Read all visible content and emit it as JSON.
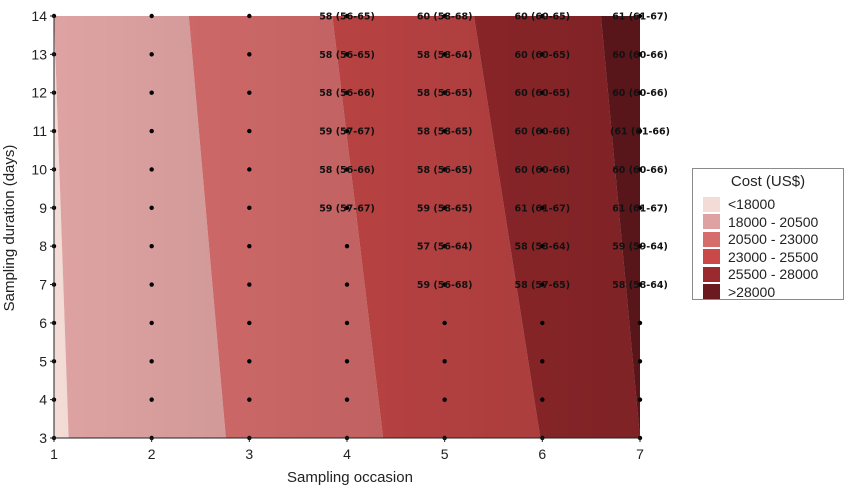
{
  "chart_data": {
    "type": "heatmap",
    "xlabel": "Sampling occasion",
    "ylabel": "Sampling duration (days)",
    "x_ticks": [
      1,
      2,
      3,
      4,
      5,
      6,
      7
    ],
    "y_ticks": [
      3,
      4,
      5,
      6,
      7,
      8,
      9,
      10,
      11,
      12,
      13,
      14
    ],
    "xlim": [
      1,
      7
    ],
    "ylim": [
      3,
      14
    ],
    "grid_points": "all integer (occasion, duration) combinations",
    "legend": {
      "title": "Cost (US$)",
      "placement": "right",
      "entries": [
        {
          "label": "<18000",
          "color": "#f2dcd5"
        },
        {
          "label": "18000 - 20500",
          "color": "#dea2a2"
        },
        {
          "label": "20500 - 23000",
          "color": "#d66c6c"
        },
        {
          "label": "23000 - 25500",
          "color": "#c94848"
        },
        {
          "label": "25500 - 28000",
          "color": "#9b2a2e"
        },
        {
          "label": ">28000",
          "color": "#6b1a1f"
        }
      ]
    },
    "cost_band_boundaries": [
      {
        "band": "<18000 | 18000 - 20500",
        "bottom_x": 1.15,
        "top_x": 1.0
      },
      {
        "band": "18000 - 20500 | 20500 - 23000",
        "bottom_x": 2.76,
        "top_x": 2.38
      },
      {
        "band": "20500 - 23000 | 23000 - 25500",
        "bottom_x": 4.37,
        "top_x": 3.85
      },
      {
        "band": "23000 - 25500 | 25500 - 28000",
        "bottom_x": 5.98,
        "top_x": 5.3
      },
      {
        "band": "25500 - 28000 | >28000",
        "bottom_x": 7.0,
        "top_x": 6.6
      }
    ],
    "cell_labels": [
      {
        "x": 4,
        "y": 14,
        "text": "58 (56-65)"
      },
      {
        "x": 4,
        "y": 13,
        "text": "58 (56-65)"
      },
      {
        "x": 4,
        "y": 12,
        "text": "58 (56-66)"
      },
      {
        "x": 4,
        "y": 11,
        "text": "59 (57-67)"
      },
      {
        "x": 4,
        "y": 10,
        "text": "58 (56-66)"
      },
      {
        "x": 4,
        "y": 9,
        "text": "59 (57-67)"
      },
      {
        "x": 5,
        "y": 14,
        "text": "60 (58-68)"
      },
      {
        "x": 5,
        "y": 13,
        "text": "58 (58-64)"
      },
      {
        "x": 5,
        "y": 12,
        "text": "58 (56-65)"
      },
      {
        "x": 5,
        "y": 11,
        "text": "58 (58-65)"
      },
      {
        "x": 5,
        "y": 10,
        "text": "58 (56-65)"
      },
      {
        "x": 5,
        "y": 9,
        "text": "59 (58-65)"
      },
      {
        "x": 5,
        "y": 8,
        "text": "57 (56-64)"
      },
      {
        "x": 5,
        "y": 7,
        "text": "59 (56-68)"
      },
      {
        "x": 6,
        "y": 14,
        "text": "60 (60-65)"
      },
      {
        "x": 6,
        "y": 13,
        "text": "60 (60-65)"
      },
      {
        "x": 6,
        "y": 12,
        "text": "60 (60-65)"
      },
      {
        "x": 6,
        "y": 11,
        "text": "60 (60-66)"
      },
      {
        "x": 6,
        "y": 10,
        "text": "60 (60-66)"
      },
      {
        "x": 6,
        "y": 9,
        "text": "61 (61-67)"
      },
      {
        "x": 6,
        "y": 8,
        "text": "58 (58-64)"
      },
      {
        "x": 6,
        "y": 7,
        "text": "58 (57-65)"
      },
      {
        "x": 7,
        "y": 14,
        "text": "61 (61-67)"
      },
      {
        "x": 7,
        "y": 13,
        "text": "60 (60-66)"
      },
      {
        "x": 7,
        "y": 12,
        "text": "60 (60-66)"
      },
      {
        "x": 7,
        "y": 11,
        "text": "(61 (61-66)"
      },
      {
        "x": 7,
        "y": 10,
        "text": "60 (60-66)"
      },
      {
        "x": 7,
        "y": 9,
        "text": "61 (61-67)"
      },
      {
        "x": 7,
        "y": 8,
        "text": "59 (59-64)"
      },
      {
        "x": 7,
        "y": 7,
        "text": "58 (58-64)"
      }
    ]
  }
}
